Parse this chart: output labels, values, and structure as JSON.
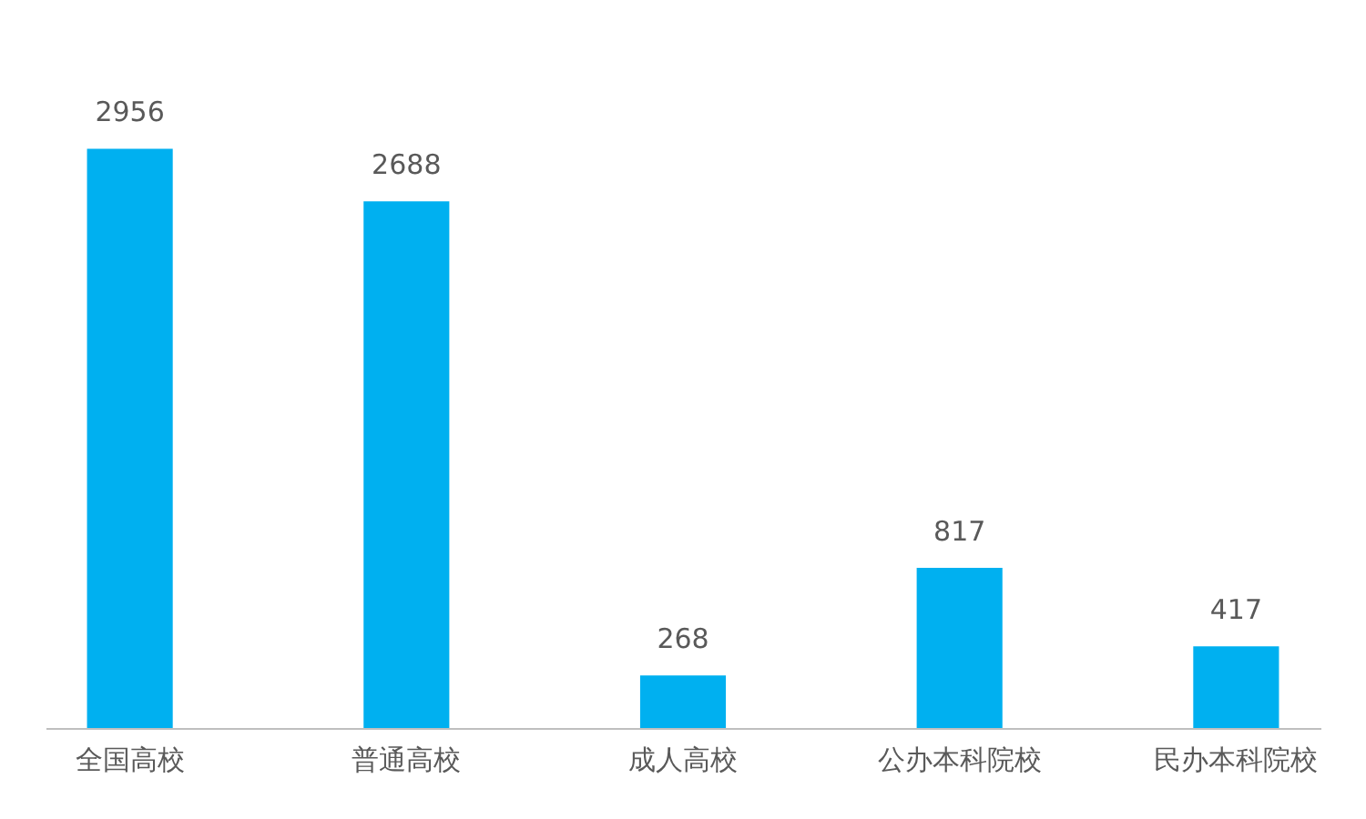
{
  "chart_data": {
    "type": "bar",
    "categories": [
      "全国高校",
      "普通高校",
      "成人高校",
      "公办本科院校",
      "民办本科院校"
    ],
    "values": [
      2956,
      2688,
      268,
      817,
      417
    ],
    "color": "#00b0f0",
    "data_labels": true
  }
}
